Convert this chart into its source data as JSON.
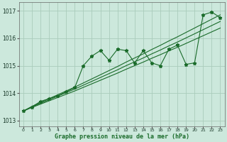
{
  "title": "Graphe pression niveau de la mer (hPa)",
  "bg_color": "#cce8dc",
  "grid_color": "#aaccbb",
  "line_color": "#1a6b2a",
  "xlim": [
    -0.5,
    23.5
  ],
  "ylim": [
    1012.8,
    1017.3
  ],
  "xticks": [
    0,
    1,
    2,
    3,
    4,
    5,
    6,
    7,
    8,
    9,
    10,
    11,
    12,
    13,
    14,
    15,
    16,
    17,
    18,
    19,
    20,
    21,
    22,
    23
  ],
  "yticks": [
    1013,
    1014,
    1015,
    1016,
    1017
  ],
  "x": [
    0,
    1,
    2,
    3,
    4,
    5,
    6,
    7,
    8,
    9,
    10,
    11,
    12,
    13,
    14,
    15,
    16,
    17,
    18,
    19,
    20,
    21,
    22,
    23
  ],
  "y_main": [
    1013.35,
    1013.5,
    1013.7,
    1013.8,
    1013.9,
    1014.05,
    1014.2,
    1015.0,
    1015.35,
    1015.55,
    1015.2,
    1015.6,
    1015.55,
    1015.1,
    1015.55,
    1015.1,
    1015.0,
    1015.6,
    1015.75,
    1015.05,
    1015.1,
    1016.85,
    1016.95,
    1016.75
  ],
  "y_trend_low": [
    1013.35,
    1013.48,
    1013.6,
    1013.72,
    1013.84,
    1013.96,
    1014.08,
    1014.21,
    1014.34,
    1014.47,
    1014.6,
    1014.73,
    1014.87,
    1015.0,
    1015.13,
    1015.27,
    1015.4,
    1015.54,
    1015.67,
    1015.81,
    1015.95,
    1016.09,
    1016.23,
    1016.37
  ],
  "y_trend_mid": [
    1013.35,
    1013.5,
    1013.63,
    1013.76,
    1013.89,
    1014.02,
    1014.15,
    1014.29,
    1014.43,
    1014.57,
    1014.71,
    1014.85,
    1015.0,
    1015.14,
    1015.28,
    1015.43,
    1015.57,
    1015.72,
    1015.86,
    1016.01,
    1016.16,
    1016.31,
    1016.46,
    1016.61
  ],
  "y_trend_high": [
    1013.35,
    1013.52,
    1013.66,
    1013.8,
    1013.94,
    1014.08,
    1014.22,
    1014.37,
    1014.52,
    1014.67,
    1014.82,
    1014.97,
    1015.13,
    1015.28,
    1015.43,
    1015.59,
    1015.74,
    1015.9,
    1016.05,
    1016.21,
    1016.37,
    1016.53,
    1016.69,
    1016.85
  ]
}
